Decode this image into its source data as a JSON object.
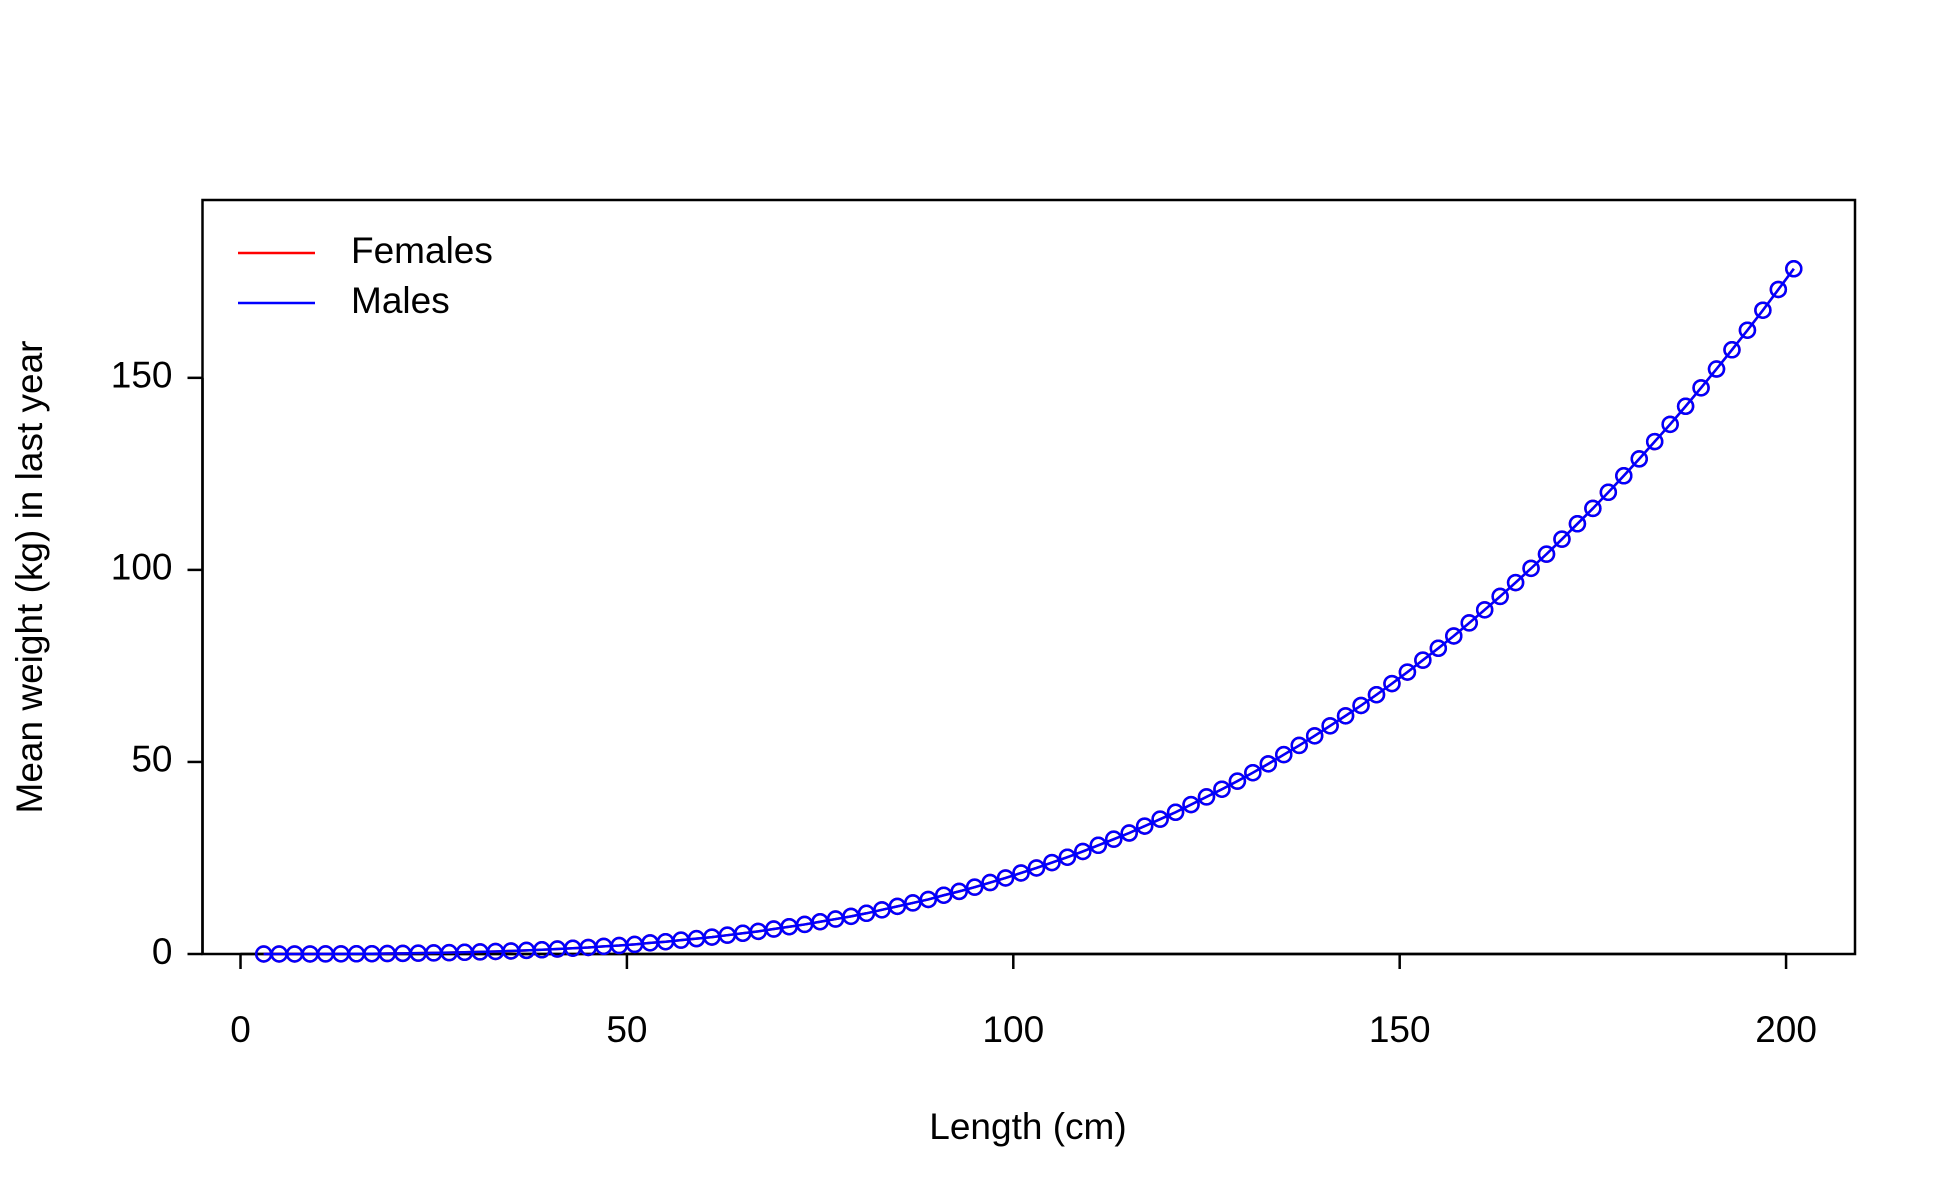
{
  "chart_data": {
    "type": "line",
    "xlabel": "Length (cm)",
    "ylabel": "Mean weight (kg) in last year",
    "x": [
      3,
      5,
      7,
      9,
      11,
      13,
      15,
      17,
      19,
      21,
      23,
      25,
      27,
      29,
      31,
      33,
      35,
      37,
      39,
      41,
      43,
      45,
      47,
      49,
      51,
      53,
      55,
      57,
      59,
      61,
      63,
      65,
      67,
      69,
      71,
      73,
      75,
      77,
      79,
      81,
      83,
      85,
      87,
      89,
      91,
      93,
      95,
      97,
      99,
      101,
      103,
      105,
      107,
      109,
      111,
      113,
      115,
      117,
      119,
      121,
      123,
      125,
      127,
      129,
      131,
      133,
      135,
      137,
      139,
      141,
      143,
      145,
      147,
      149,
      151,
      153,
      155,
      157,
      159,
      161,
      163,
      165,
      167,
      169,
      171,
      173,
      175,
      177,
      179,
      181,
      183,
      185,
      187,
      189,
      191,
      193,
      195,
      197,
      199,
      201
    ],
    "series": [
      {
        "name": "Females",
        "color": "#ff0000",
        "values": [
          0.0,
          0.0,
          0.01,
          0.01,
          0.02,
          0.04,
          0.06,
          0.08,
          0.12,
          0.16,
          0.22,
          0.28,
          0.35,
          0.44,
          0.54,
          0.66,
          0.79,
          0.94,
          1.1,
          1.3,
          1.5,
          1.7,
          2.0,
          2.2,
          2.5,
          2.9,
          3.2,
          3.6,
          4.0,
          4.4,
          4.9,
          5.4,
          5.9,
          6.5,
          7.1,
          7.7,
          8.4,
          9.1,
          9.8,
          10.6,
          11.5,
          12.4,
          13.3,
          14.2,
          15.3,
          16.3,
          17.4,
          18.6,
          19.8,
          21.1,
          22.4,
          23.8,
          25.2,
          26.7,
          28.3,
          29.9,
          31.5,
          33.3,
          35.1,
          36.9,
          38.9,
          40.9,
          42.9,
          45.0,
          47.2,
          49.5,
          51.9,
          54.3,
          56.8,
          59.4,
          62.0,
          64.7,
          67.5,
          70.4,
          73.4,
          76.5,
          79.6,
          82.8,
          86.2,
          89.6,
          93.1,
          96.7,
          100.4,
          104.1,
          108.0,
          112.0,
          116.0,
          120.2,
          124.5,
          128.9,
          133.4,
          137.9,
          142.6,
          147.4,
          152.3,
          157.3,
          162.4,
          167.6,
          173.0,
          178.4
        ]
      },
      {
        "name": "Males",
        "color": "#0000ff",
        "values": [
          0.0,
          0.0,
          0.01,
          0.01,
          0.02,
          0.04,
          0.06,
          0.08,
          0.12,
          0.16,
          0.22,
          0.28,
          0.35,
          0.44,
          0.54,
          0.66,
          0.79,
          0.94,
          1.1,
          1.3,
          1.5,
          1.7,
          2.0,
          2.2,
          2.5,
          2.9,
          3.2,
          3.6,
          4.0,
          4.4,
          4.9,
          5.4,
          5.9,
          6.5,
          7.1,
          7.7,
          8.4,
          9.1,
          9.8,
          10.6,
          11.5,
          12.4,
          13.3,
          14.2,
          15.3,
          16.3,
          17.4,
          18.6,
          19.8,
          21.1,
          22.4,
          23.8,
          25.2,
          26.7,
          28.3,
          29.9,
          31.5,
          33.3,
          35.1,
          36.9,
          38.9,
          40.9,
          42.9,
          45.0,
          47.2,
          49.5,
          51.9,
          54.3,
          56.8,
          59.4,
          62.0,
          64.7,
          67.5,
          70.4,
          73.4,
          76.5,
          79.6,
          82.8,
          86.2,
          89.6,
          93.1,
          96.7,
          100.4,
          104.1,
          108.0,
          112.0,
          116.0,
          120.2,
          124.5,
          128.9,
          133.4,
          137.9,
          142.6,
          147.4,
          152.3,
          157.3,
          162.4,
          167.6,
          173.0,
          178.4
        ]
      }
    ],
    "xlim": [
      -4.92,
      208.92
    ],
    "xticks": [
      0,
      50,
      100,
      150,
      200
    ],
    "ylim": [
      0,
      196.3
    ],
    "yticks": [
      0,
      50,
      100,
      150
    ],
    "grid": false,
    "legend": "top-left"
  }
}
